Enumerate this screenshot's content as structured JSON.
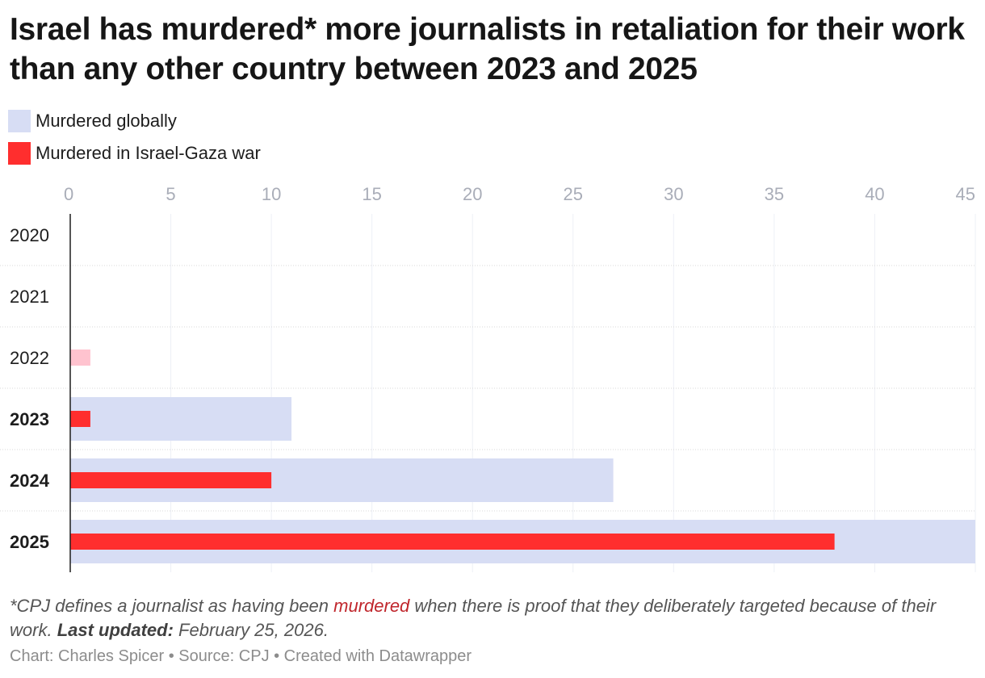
{
  "title": "Israel has murdered* more journalists in retaliation for their work than any other country between 2023 and 2025",
  "legend": [
    {
      "label": "Murdered globally",
      "color": "#d7ddf4"
    },
    {
      "label": "Murdered in Israel-Gaza war",
      "color": "#ff2e2e"
    }
  ],
  "chart_data": {
    "type": "bar",
    "orientation": "horizontal",
    "categories": [
      "2020",
      "2021",
      "2022",
      "2023",
      "2024",
      "2025"
    ],
    "bold_categories": [
      "2023",
      "2024",
      "2025"
    ],
    "series": [
      {
        "name": "Murdered globally",
        "color": "#d7ddf4",
        "values": [
          0,
          0,
          0,
          11,
          27,
          45
        ]
      },
      {
        "name": "Murdered in Israel-Gaza war",
        "color": "#ff2e2e",
        "values": [
          0,
          0,
          1,
          1,
          10,
          38
        ]
      }
    ],
    "xticks": [
      "0",
      "5",
      "10",
      "15",
      "20",
      "25",
      "30",
      "35",
      "40",
      "45"
    ],
    "xlim": [
      0,
      45
    ],
    "grid": true,
    "legend_position": "top-left",
    "colors": {
      "inwar_pre_war": "#ffc3cf"
    }
  },
  "footnote": {
    "prefix": "*CPJ defines a journalist as having been ",
    "highlight": "murdered",
    "middle": " when there is proof that they deliberately targeted because of their work. ",
    "bold": "Last updated:",
    "suffix": " February 25, 2026."
  },
  "credits": "Chart: Charles Spicer • Source: CPJ • Created with Datawrapper"
}
